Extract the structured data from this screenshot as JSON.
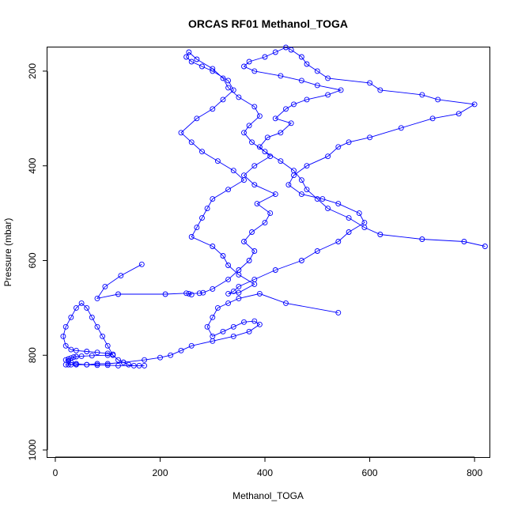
{
  "chart_data": {
    "type": "line",
    "title": "ORCAS RF01 Methanol_TOGA",
    "xlabel": "Methanol_TOGA",
    "ylabel": "Pressure (mbar)",
    "xlim": [
      -15,
      830
    ],
    "ylim": [
      1015,
      150
    ],
    "y_reversed": true,
    "xticks": [
      0,
      200,
      400,
      600,
      800
    ],
    "yticks": [
      200,
      400,
      600,
      800,
      1000
    ],
    "grid": false,
    "line_color": "#0000ff",
    "marker": "open-circle",
    "series": [
      {
        "x": [
          165,
          125,
          95,
          80,
          120,
          210,
          250,
          260,
          255,
          275,
          282,
          300,
          330,
          350,
          370,
          380,
          360,
          375,
          400,
          410,
          385,
          420,
          380,
          360,
          380,
          410,
          390,
          405,
          430,
          450,
          420,
          440,
          455,
          480,
          520,
          545,
          500,
          470,
          430,
          380,
          360,
          370,
          400,
          420,
          440,
          450,
          470,
          480,
          500,
          520,
          600,
          620,
          700,
          730,
          800,
          770,
          720,
          660,
          600,
          560,
          540,
          520,
          480,
          455,
          445,
          470,
          510,
          540,
          580,
          590,
          560,
          540,
          500,
          470,
          420,
          380,
          350,
          340,
          330,
          350,
          380,
          350,
          330,
          320,
          300,
          260,
          270,
          280,
          290,
          300,
          330,
          360,
          340,
          310,
          280,
          260,
          240,
          270,
          300,
          320,
          340,
          330,
          300,
          280,
          260,
          250,
          255,
          270,
          300,
          320,
          330,
          350,
          380,
          390,
          370,
          360,
          375,
          400,
          430,
          455,
          470,
          480,
          500,
          520,
          560,
          590,
          620,
          700,
          780,
          820
        ],
        "y": [
          608,
          632,
          655,
          680,
          671,
          671,
          669,
          672,
          670,
          669,
          668,
          660,
          640,
          620,
          600,
          580,
          560,
          540,
          520,
          500,
          480,
          460,
          440,
          420,
          400,
          380,
          360,
          340,
          330,
          310,
          300,
          280,
          270,
          260,
          250,
          240,
          230,
          220,
          210,
          200,
          190,
          180,
          170,
          160,
          150,
          155,
          170,
          185,
          200,
          215,
          225,
          240,
          250,
          260,
          270,
          290,
          300,
          320,
          340,
          350,
          360,
          380,
          400,
          420,
          440,
          460,
          470,
          480,
          500,
          520,
          540,
          560,
          580,
          600,
          620,
          640,
          655,
          665,
          670,
          668,
          650,
          630,
          610,
          590,
          570,
          550,
          530,
          510,
          490,
          470,
          450,
          430,
          410,
          390,
          370,
          350,
          330,
          300,
          280,
          260,
          240,
          220,
          200,
          190,
          180,
          170,
          160,
          175,
          195,
          215,
          235,
          255,
          275,
          295,
          315,
          330,
          350,
          370,
          390,
          410,
          430,
          450,
          470,
          490,
          510,
          530,
          545,
          555,
          560,
          570
        ]
      },
      {
        "x": [
          540,
          440,
          390,
          350,
          330,
          310,
          300,
          290,
          300,
          320,
          340,
          360,
          380,
          390,
          370,
          340,
          300,
          260,
          240,
          220,
          200,
          170,
          130,
          100,
          80,
          60,
          40,
          30,
          25,
          20,
          25,
          30,
          35,
          40,
          50,
          70,
          100,
          110,
          100,
          80,
          60,
          40,
          30,
          20,
          15,
          20,
          30,
          40,
          50,
          60,
          70,
          80,
          90,
          100,
          110,
          120,
          130,
          140,
          150,
          160,
          170,
          120,
          100,
          80,
          60,
          40,
          30,
          25,
          20
        ],
        "y": [
          710,
          690,
          670,
          680,
          690,
          700,
          720,
          740,
          760,
          750,
          740,
          730,
          728,
          735,
          750,
          760,
          770,
          780,
          790,
          800,
          805,
          810,
          815,
          818,
          818,
          820,
          818,
          815,
          812,
          810,
          808,
          806,
          804,
          803,
          802,
          801,
          800,
          798,
          796,
          794,
          792,
          790,
          788,
          780,
          760,
          740,
          720,
          700,
          690,
          700,
          720,
          740,
          760,
          780,
          800,
          810,
          815,
          820,
          822,
          822,
          822,
          822,
          821,
          821,
          820,
          820,
          820,
          820,
          820
        ]
      }
    ]
  }
}
